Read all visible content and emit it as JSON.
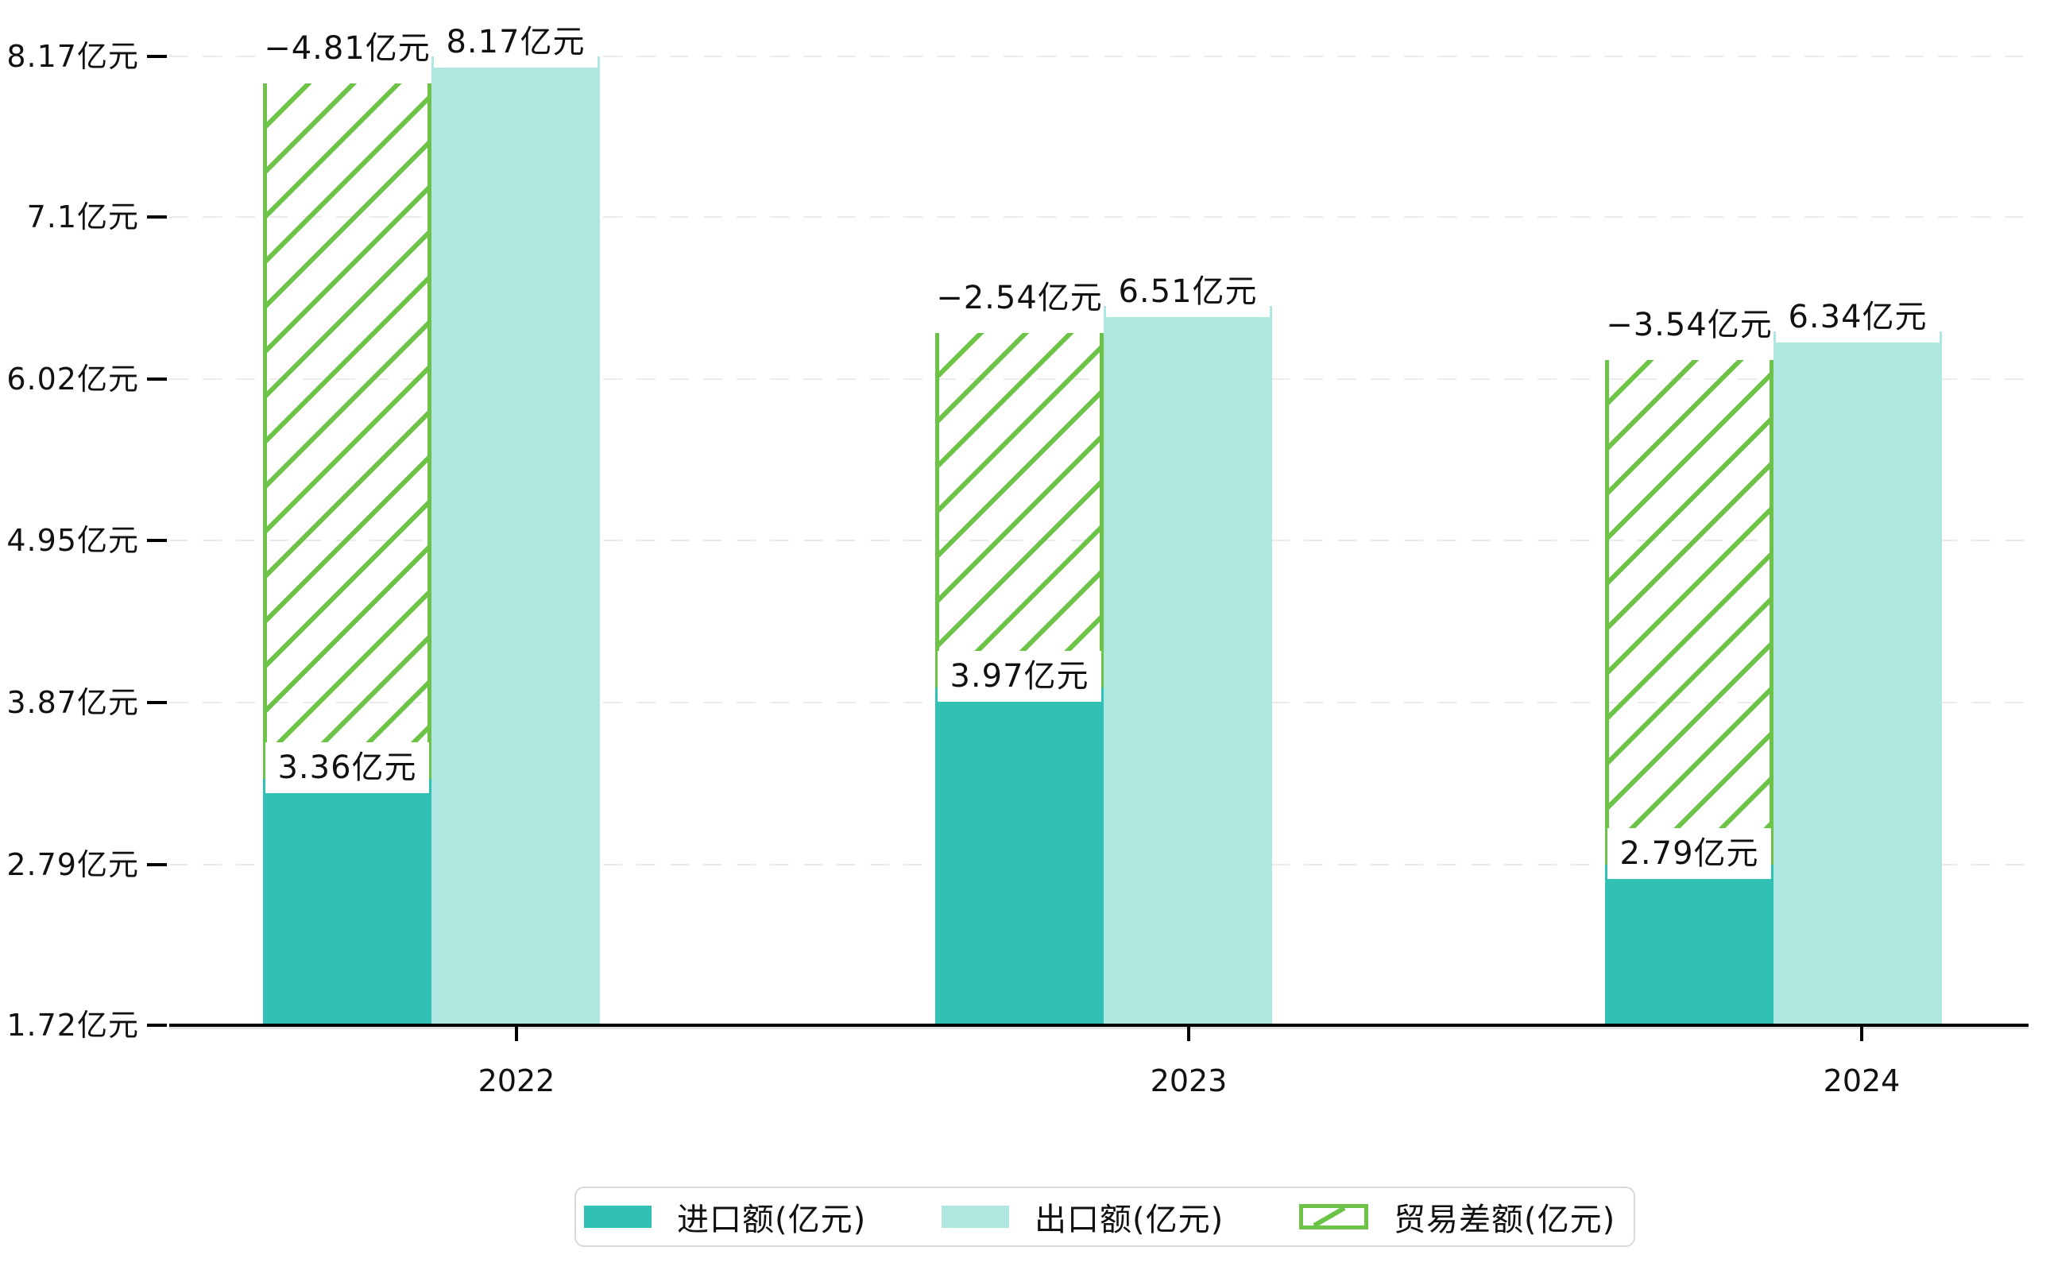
{
  "chart_data": {
    "type": "bar",
    "title": "",
    "categories": [
      "2022",
      "2023",
      "2024"
    ],
    "series": [
      {
        "name": "进口额(亿元)",
        "role": "import",
        "values": [
          3.36,
          3.97,
          2.79
        ],
        "labels": [
          "3.36亿元",
          "3.97亿元",
          "2.79亿元"
        ],
        "color": "#31c1b4",
        "style": "solid"
      },
      {
        "name": "出口额(亿元)",
        "role": "export",
        "values": [
          8.17,
          6.51,
          6.34
        ],
        "labels": [
          "8.17亿元",
          "6.51亿元",
          "6.34亿元"
        ],
        "color": "#aee6e0",
        "style": "solid"
      },
      {
        "name": "贸易差额(亿元)",
        "role": "balance",
        "values": [
          -4.81,
          -2.54,
          -3.54
        ],
        "labels": [
          "−4.81亿元",
          "−2.54亿元",
          "−3.54亿元"
        ],
        "color": "#6cc348",
        "style": "hatched",
        "stacked_on": "import"
      }
    ],
    "y_axis": {
      "tick_labels": [
        "1.72亿元",
        "2.79亿元",
        "3.87亿元",
        "4.95亿元",
        "6.02亿元",
        "7.1亿元",
        "8.17亿元"
      ],
      "tick_values": [
        1.72,
        2.79,
        3.87,
        4.95,
        6.02,
        7.1,
        8.17
      ],
      "ylim": [
        1.72,
        8.17
      ]
    },
    "x_axis": {
      "tick_labels": [
        "2022",
        "2023",
        "2024"
      ]
    },
    "grid": true,
    "grid_color": "#ebebeb",
    "axis_color": "#000000",
    "background_color": "#ffffff",
    "legend_position": "bottom"
  }
}
